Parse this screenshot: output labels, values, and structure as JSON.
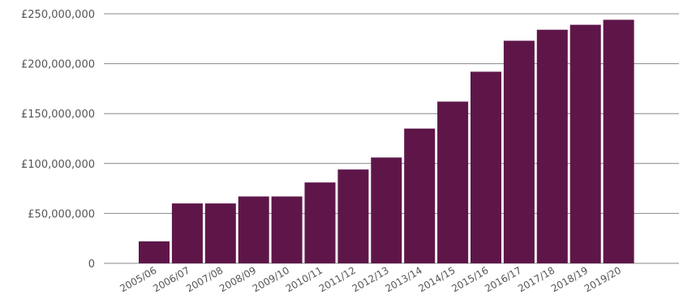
{
  "chart_data": {
    "type": "bar",
    "title": "",
    "xlabel": "",
    "ylabel": "",
    "categories": [
      "2005/06",
      "2006/07",
      "2007/08",
      "2008/09",
      "2009/10",
      "2010/11",
      "2011/12",
      "2012/13",
      "2013/14",
      "2014/15",
      "2015/16",
      "2016/17",
      "2017/18",
      "2018/19",
      "2019/20"
    ],
    "values": [
      22000000,
      60000000,
      60000000,
      67000000,
      67000000,
      81000000,
      94000000,
      106000000,
      135000000,
      162000000,
      192000000,
      223000000,
      234000000,
      239000000,
      244000000
    ],
    "ylim": [
      0,
      250000000
    ],
    "yticks": [
      0,
      50000000,
      100000000,
      150000000,
      200000000,
      250000000
    ],
    "ytick_labels": [
      "0",
      "£50,000,000",
      "£100,000,000",
      "£150,000,000",
      "£200,000,000",
      "£250,000,000"
    ],
    "grid": true,
    "bar_color": "#5e1649",
    "grid_color": "#888888",
    "label_color": "#555555"
  }
}
